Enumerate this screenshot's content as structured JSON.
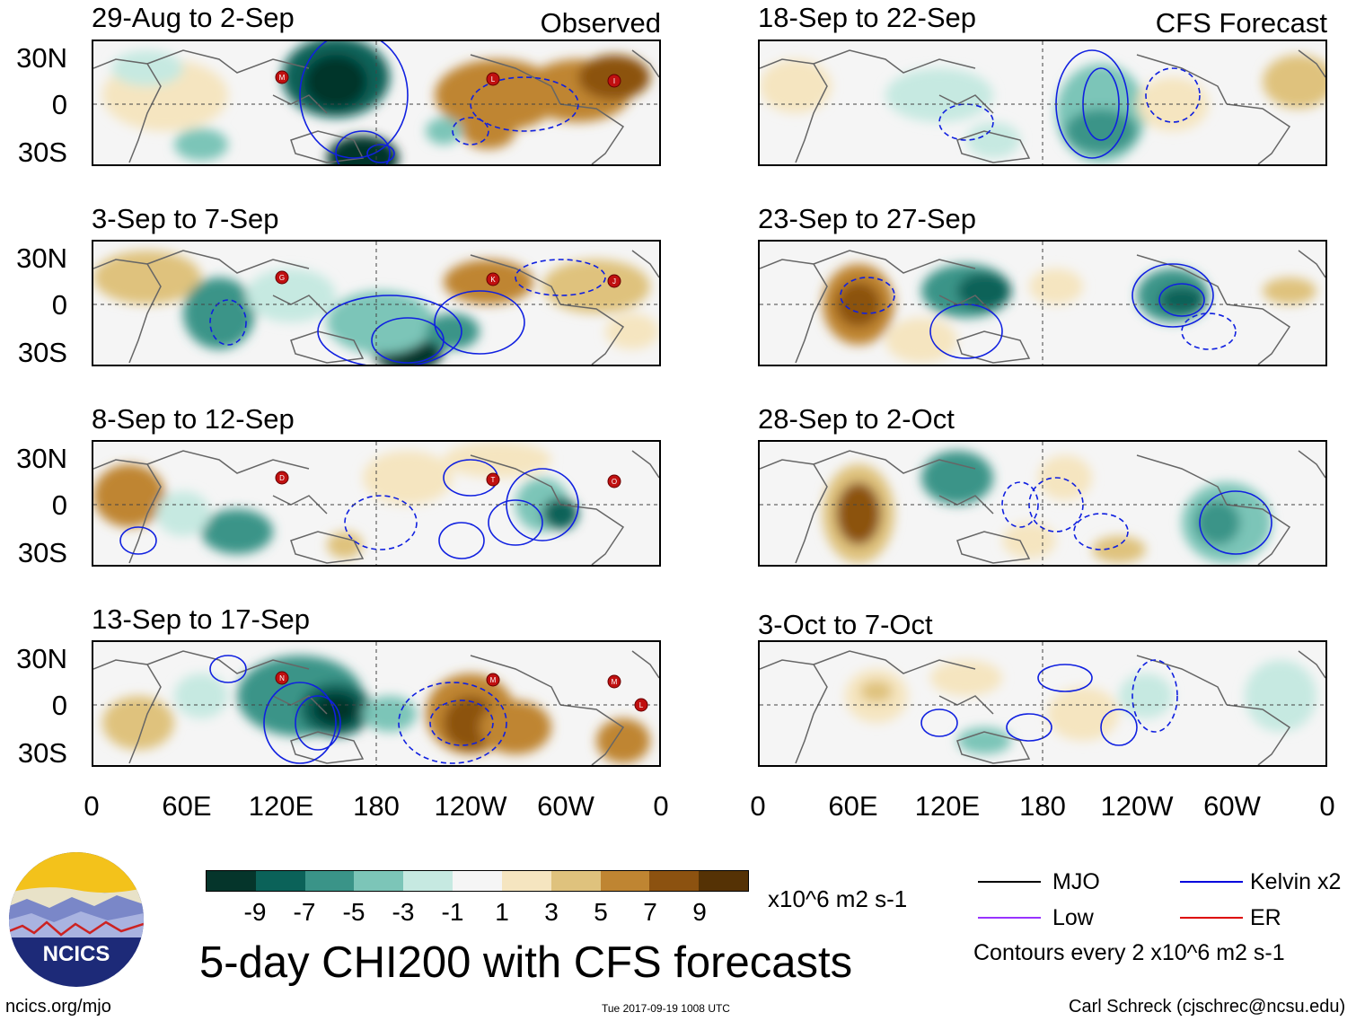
{
  "header": {
    "observed_label": "Observed",
    "forecast_label": "CFS Forecast"
  },
  "panels": [
    {
      "title": "29-Aug to 2-Sep",
      "column": "observed",
      "storms": [
        "M",
        "L",
        "I"
      ],
      "pattern": "a"
    },
    {
      "title": "3-Sep to 7-Sep",
      "column": "observed",
      "storms": [
        "G",
        "K",
        "J"
      ],
      "pattern": "b"
    },
    {
      "title": "8-Sep to 12-Sep",
      "column": "observed",
      "storms": [
        "D",
        "T",
        "O"
      ],
      "pattern": "c"
    },
    {
      "title": "13-Sep to 17-Sep",
      "column": "observed",
      "storms": [
        "N",
        "M",
        "M",
        "L"
      ],
      "pattern": "d"
    },
    {
      "title": "18-Sep to 22-Sep",
      "column": "forecast",
      "storms": [],
      "pattern": "e"
    },
    {
      "title": "23-Sep to 27-Sep",
      "column": "forecast",
      "storms": [],
      "pattern": "f"
    },
    {
      "title": "28-Sep to 2-Oct",
      "column": "forecast",
      "storms": [],
      "pattern": "g"
    },
    {
      "title": "3-Oct to 7-Oct",
      "column": "forecast",
      "storms": [],
      "pattern": "h"
    }
  ],
  "lat_labels": [
    "30N",
    "0",
    "30S"
  ],
  "lon_labels": [
    "0",
    "60E",
    "120E",
    "180",
    "120W",
    "60W",
    "0"
  ],
  "colorbar": {
    "colors": [
      "#05352b",
      "#0b6259",
      "#3a9488",
      "#7cc5b8",
      "#c6e9e1",
      "#f5f5f5",
      "#f5e5c0",
      "#dfc27d",
      "#bf8532",
      "#8c5210",
      "#553205"
    ],
    "labels": [
      "-9",
      "-7",
      "-5",
      "-3",
      "-1",
      "1",
      "3",
      "5",
      "7",
      "9"
    ],
    "units": "x10^6 m2 s-1"
  },
  "title": "5-day CHI200 with CFS forecasts",
  "legend": {
    "items": [
      {
        "label": "MJO",
        "color": "#000000"
      },
      {
        "label": "Low",
        "color": "#9933ff"
      },
      {
        "label": "Kelvin x2",
        "color": "#0000dd"
      },
      {
        "label": "ER",
        "color": "#dd0000"
      }
    ],
    "contours_note": "Contours every 2 x10^6 m2 s-1"
  },
  "logo": {
    "text": "NCICS"
  },
  "footer": {
    "url": "ncics.org/mjo",
    "timestamp": "Tue 2017-09-19 1008 UTC",
    "author": "Carl Schreck (cjschrec@ncsu.edu)"
  }
}
